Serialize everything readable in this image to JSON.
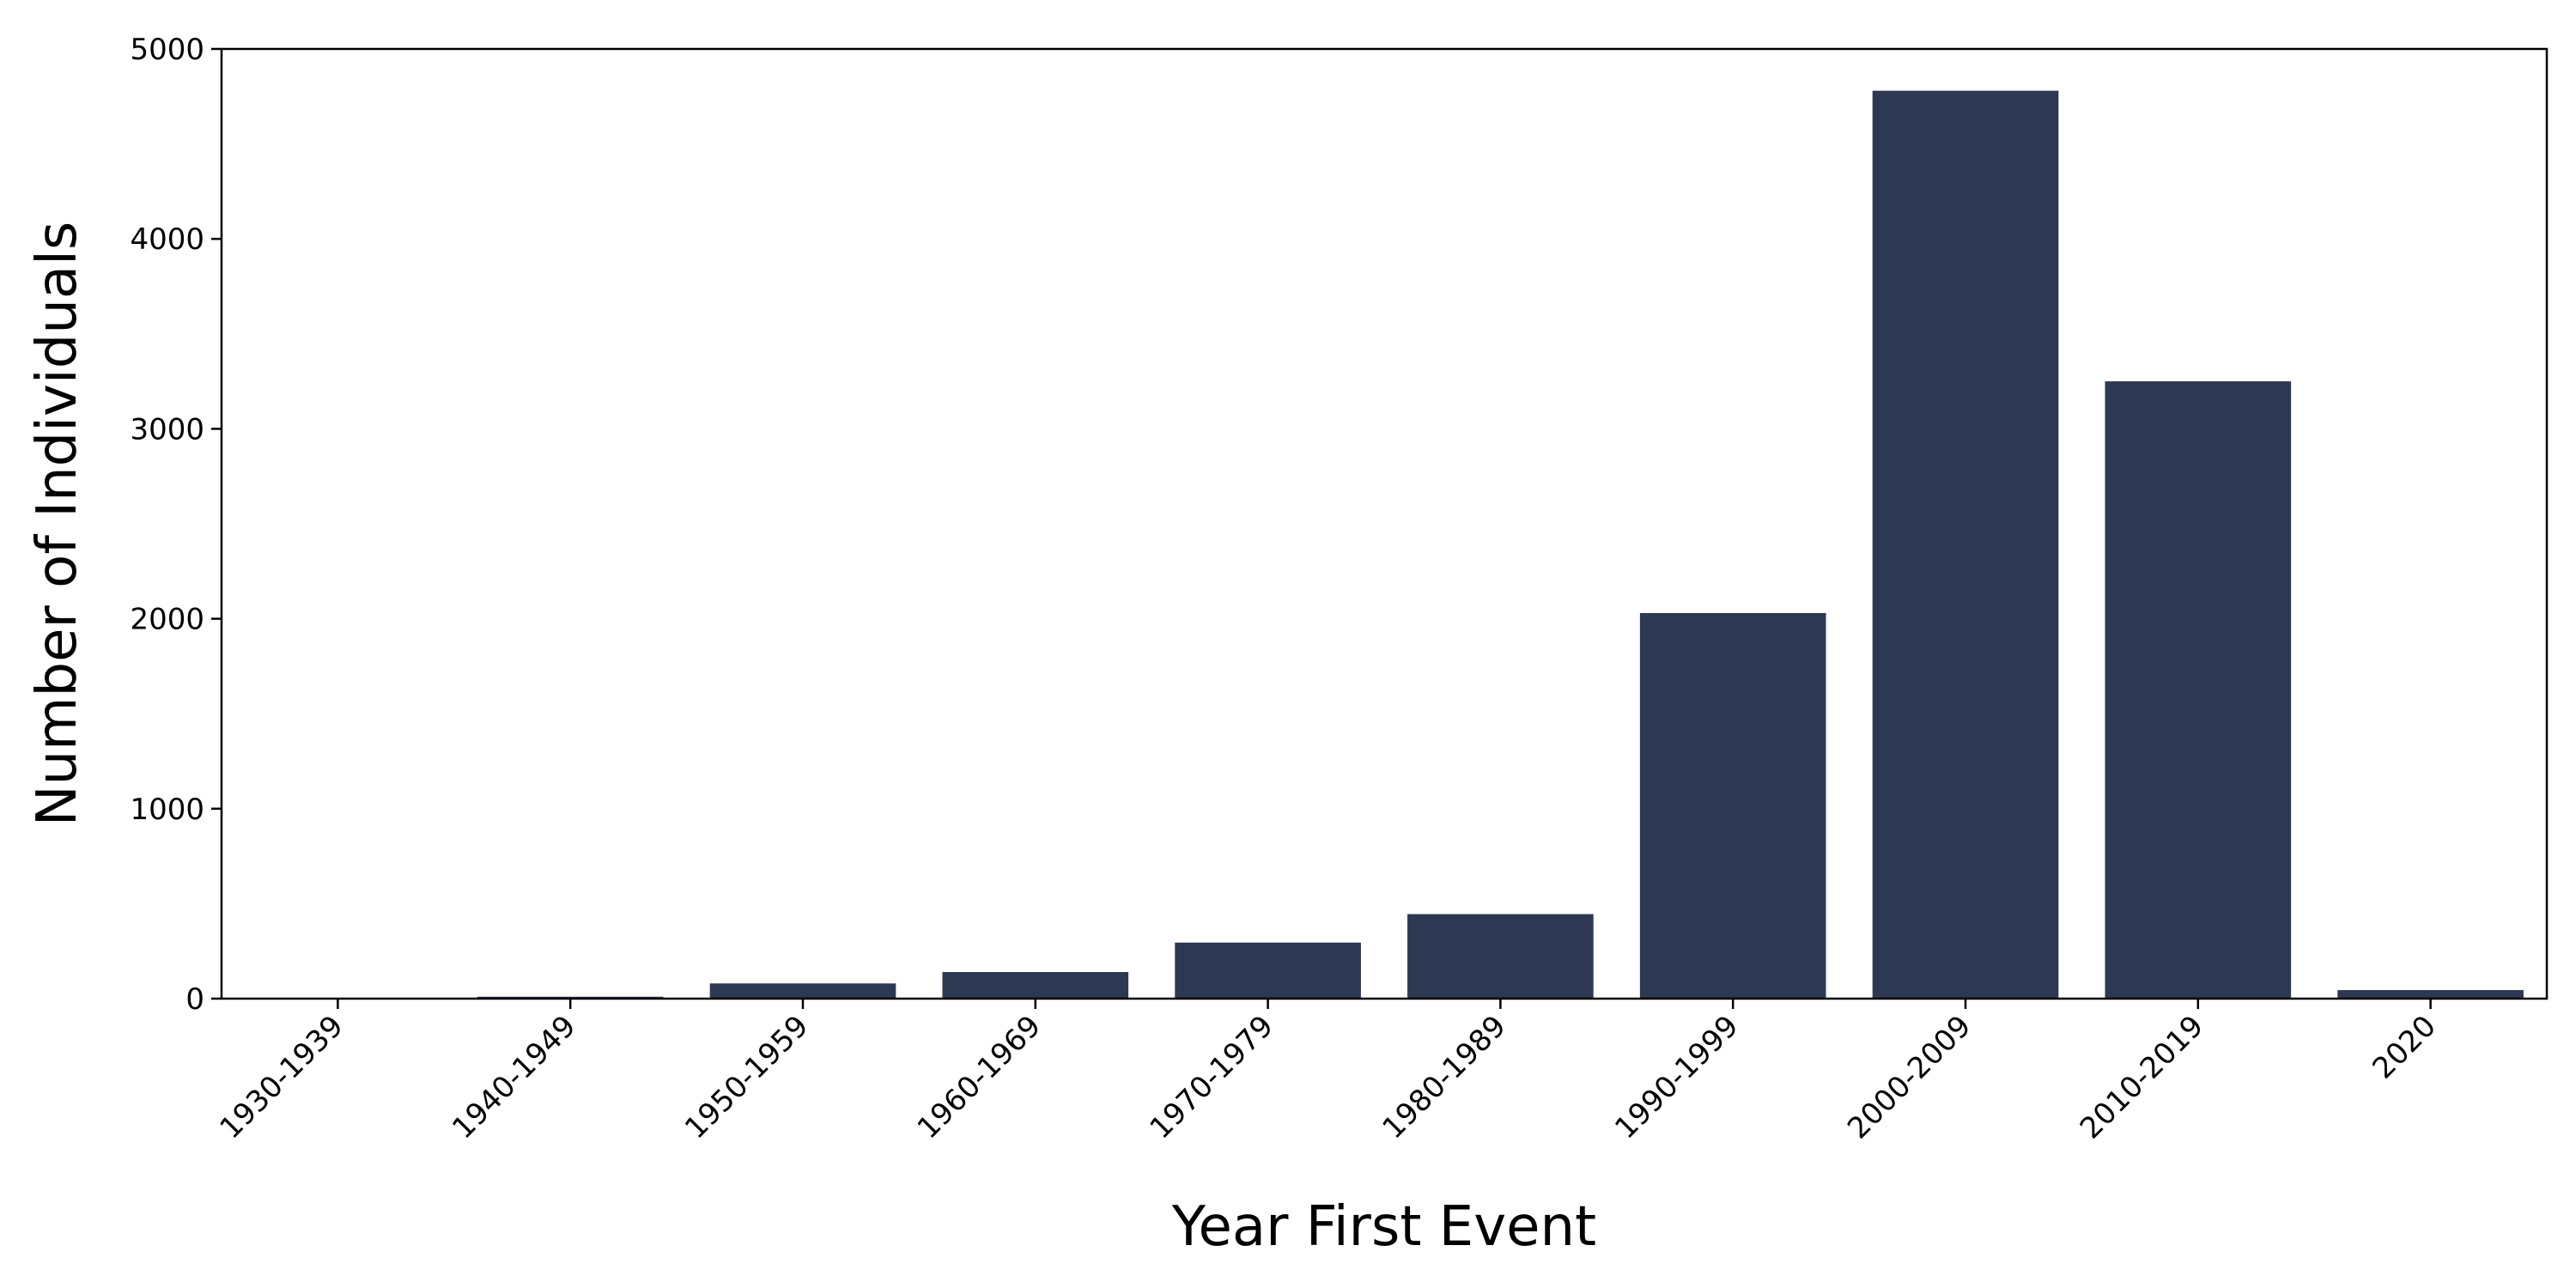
{
  "chart_data": {
    "type": "bar",
    "title": "",
    "xlabel": "Year First Event",
    "ylabel": "Number of Individuals",
    "categories": [
      "1930-1939",
      "1940-1949",
      "1950-1959",
      "1960-1969",
      "1970-1979",
      "1980-1989",
      "1990-1999",
      "2000-2009",
      "2010-2019",
      "2020"
    ],
    "values": [
      3,
      10,
      80,
      140,
      295,
      445,
      2030,
      4780,
      3250,
      45
    ],
    "ylim": [
      0,
      5000
    ],
    "yticks": [
      0,
      1000,
      2000,
      3000,
      4000,
      5000
    ],
    "bar_color": "#2d3952",
    "grid": false,
    "legend": "none"
  }
}
